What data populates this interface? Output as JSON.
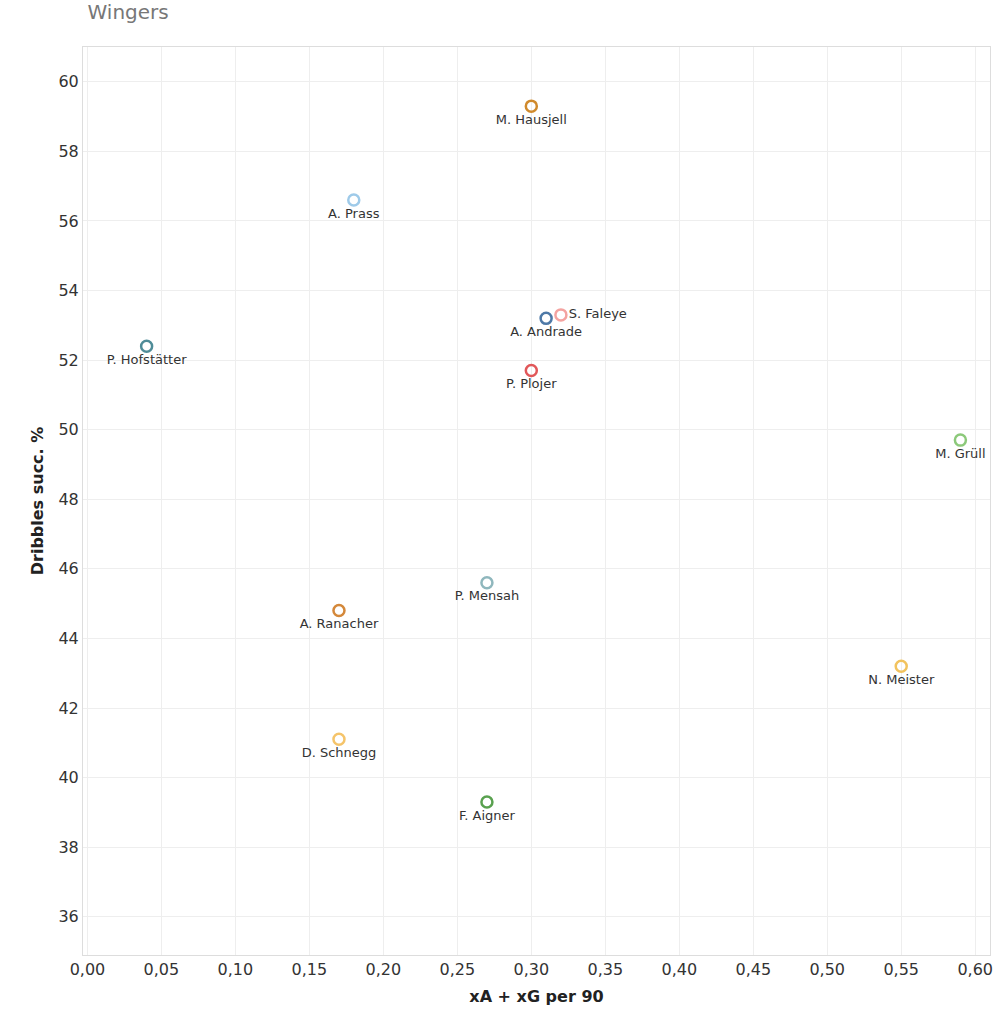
{
  "chart_data": {
    "type": "scatter",
    "title": "Wingers",
    "x_label": "xA + xG per 90",
    "y_label": "Dribbles succ. %",
    "marker": "circle-open",
    "grid": true,
    "labels": [
      "M. Hausjell",
      "A. Prass",
      "S. Faleye",
      "A. Andrade",
      "P. Hofstätter",
      "P. Plojer",
      "M. Grüll",
      "P. Mensah",
      "A. Ranacher",
      "N. Meister",
      "D. Schnegg",
      "F. Aigner"
    ],
    "x": [
      0.3,
      0.18,
      0.32,
      0.31,
      0.04,
      0.3,
      0.59,
      0.27,
      0.17,
      0.55,
      0.17,
      0.27
    ],
    "values": [
      59.3,
      56.6,
      53.3,
      53.2,
      52.4,
      51.7,
      49.7,
      45.6,
      44.8,
      43.2,
      41.1,
      39.3
    ],
    "colors": [
      "#d08a2c",
      "#9ecae9",
      "#f4a3a0",
      "#4e79a7",
      "#4f8c98",
      "#e15759",
      "#8cc97a",
      "#8fb7bd",
      "#d4883a",
      "#f2c35e",
      "#f5c46a",
      "#59a14f"
    ],
    "xlim": [
      -0.003,
      0.61
    ],
    "ylim": [
      34.9,
      61
    ],
    "xticks": [
      {
        "value": 0,
        "label": "0,00"
      },
      {
        "value": 0.05,
        "label": "0,05"
      },
      {
        "value": 0.1,
        "label": "0,10"
      },
      {
        "value": 0.15,
        "label": "0,15"
      },
      {
        "value": 0.2,
        "label": "0,20"
      },
      {
        "value": 0.25,
        "label": "0,25"
      },
      {
        "value": 0.3,
        "label": "0,30"
      },
      {
        "value": 0.35,
        "label": "0,35"
      },
      {
        "value": 0.4,
        "label": "0,40"
      },
      {
        "value": 0.45,
        "label": "0,45"
      },
      {
        "value": 0.5,
        "label": "0,50"
      },
      {
        "value": 0.55,
        "label": "0,55"
      },
      {
        "value": 0.6,
        "label": "0,60"
      }
    ],
    "yticks": [
      36,
      38,
      40,
      42,
      44,
      46,
      48,
      50,
      52,
      54,
      56,
      58,
      60
    ]
  }
}
